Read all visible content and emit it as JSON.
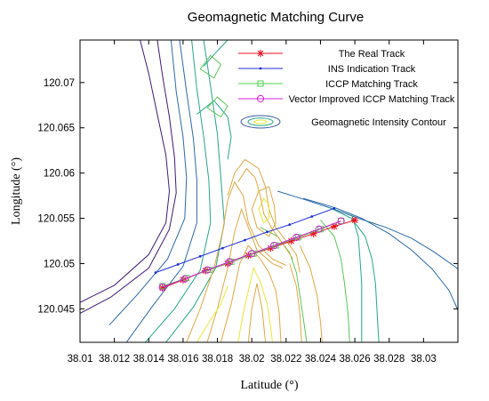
{
  "chart_data": {
    "type": "line",
    "title": "Geomagnetic Matching Curve",
    "xlabel": "Latitude (°)",
    "ylabel": "Longitude (°)",
    "xlim": [
      38.01,
      38.032
    ],
    "ylim": [
      120.0413,
      120.0747
    ],
    "x_ticks": [
      38.01,
      38.012,
      38.014,
      38.016,
      38.018,
      38.02,
      38.022,
      38.024,
      38.026,
      38.028,
      38.03
    ],
    "x_tick_labels": [
      "38.01",
      "38.012",
      "38.014",
      "38.016",
      "38.018",
      "38.02",
      "38.022",
      "38.024",
      "38.026",
      "38.028",
      "38.03"
    ],
    "y_ticks": [
      120.045,
      120.05,
      120.055,
      120.06,
      120.065,
      120.07
    ],
    "y_tick_labels": [
      "120.045",
      "120.05",
      "120.055",
      "120.06",
      "120.065",
      "120.07"
    ],
    "grid": false,
    "legend_position": "top-right",
    "series": [
      {
        "name": "The Real Track",
        "color": "#e8101e",
        "marker": "star",
        "points": [
          [
            38.0148,
            120.0473
          ],
          [
            38.016,
            120.0482
          ],
          [
            38.0173,
            120.0492
          ],
          [
            38.0186,
            120.05
          ],
          [
            38.0198,
            120.0509
          ],
          [
            38.0211,
            120.0517
          ],
          [
            38.0223,
            120.0525
          ],
          [
            38.0236,
            120.0533
          ],
          [
            38.0248,
            120.0541
          ],
          [
            38.026,
            120.0548
          ]
        ]
      },
      {
        "name": "INS Indication Track",
        "color": "#1f2fd6",
        "marker": "dot",
        "points": [
          [
            38.0144,
            120.049
          ],
          [
            38.0157,
            120.0499
          ],
          [
            38.017,
            120.0508
          ],
          [
            38.0183,
            120.0517
          ],
          [
            38.0196,
            120.0526
          ],
          [
            38.0209,
            120.0535
          ],
          [
            38.0222,
            120.0543
          ],
          [
            38.0235,
            120.0552
          ],
          [
            38.0248,
            120.0561
          ]
        ]
      },
      {
        "name": "ICCP Matching Track",
        "color": "#4fd34f",
        "marker": "square",
        "points": [
          [
            38.0148,
            120.0475
          ],
          [
            38.0162,
            120.0484
          ],
          [
            38.0175,
            120.0493
          ],
          [
            38.0188,
            120.0502
          ],
          [
            38.0201,
            120.0511
          ],
          [
            38.0214,
            120.052
          ],
          [
            38.0227,
            120.0529
          ],
          [
            38.024,
            120.0538
          ],
          [
            38.0252,
            120.0547
          ]
        ]
      },
      {
        "name": "Vector Improved ICCP Matching Track",
        "color": "#d520d5",
        "marker": "circle",
        "points": [
          [
            38.0148,
            120.0474
          ],
          [
            38.0161,
            120.0483
          ],
          [
            38.0174,
            120.0493
          ],
          [
            38.0187,
            120.0502
          ],
          [
            38.02,
            120.0511
          ],
          [
            38.0213,
            120.052
          ],
          [
            38.0226,
            120.0529
          ],
          [
            38.0239,
            120.0538
          ],
          [
            38.0252,
            120.0547
          ]
        ]
      }
    ],
    "contour_legend": {
      "name": "Geomagnetic Intensity Contour"
    },
    "contour_lines": [
      {
        "color": "#3f1a78",
        "points": [
          [
            38.01,
            120.0457
          ],
          [
            38.012,
            120.0476
          ],
          [
            38.014,
            120.051
          ],
          [
            38.015,
            120.0545
          ],
          [
            38.0152,
            120.058
          ],
          [
            38.015,
            120.062
          ],
          [
            38.0145,
            120.0665
          ],
          [
            38.014,
            120.071
          ],
          [
            38.0135,
            120.0747
          ]
        ]
      },
      {
        "color": "#3f1a78",
        "points": [
          [
            38.01,
            120.0445
          ],
          [
            38.0118,
            120.0463
          ],
          [
            38.014,
            120.0495
          ],
          [
            38.0152,
            120.0538
          ],
          [
            38.0156,
            120.0578
          ],
          [
            38.0155,
            120.0617
          ],
          [
            38.0152,
            120.0662
          ],
          [
            38.0148,
            120.0708
          ],
          [
            38.0145,
            120.0747
          ]
        ]
      },
      {
        "color": "#2c6aa8",
        "points": [
          [
            38.0117,
            120.0432
          ],
          [
            38.0133,
            120.0465
          ],
          [
            38.0151,
            120.0505
          ],
          [
            38.0161,
            120.055
          ],
          [
            38.0162,
            120.0595
          ],
          [
            38.016,
            120.064
          ],
          [
            38.0156,
            120.069
          ],
          [
            38.0153,
            120.0747
          ]
        ]
      },
      {
        "color": "#2c6aa8",
        "points": [
          [
            38.0127,
            120.0413
          ],
          [
            38.0143,
            120.0455
          ],
          [
            38.016,
            120.0497
          ],
          [
            38.0168,
            120.0545
          ],
          [
            38.0168,
            120.0592
          ],
          [
            38.0166,
            120.0638
          ],
          [
            38.0162,
            120.069
          ],
          [
            38.0158,
            120.0747
          ]
        ]
      },
      {
        "color": "#27a68a",
        "points": [
          [
            38.0138,
            120.0413
          ],
          [
            38.0155,
            120.045
          ],
          [
            38.017,
            120.0493
          ],
          [
            38.0176,
            120.0545
          ],
          [
            38.0175,
            120.0592
          ],
          [
            38.0172,
            120.064
          ],
          [
            38.0168,
            120.0693
          ],
          [
            38.0165,
            120.0747
          ]
        ]
      },
      {
        "color": "#27a68a",
        "points": [
          [
            38.015,
            120.0413
          ],
          [
            38.0166,
            120.0452
          ],
          [
            38.0179,
            120.0495
          ],
          [
            38.0184,
            120.0545
          ],
          [
            38.0182,
            120.0595
          ],
          [
            38.018,
            120.0643
          ],
          [
            38.0176,
            120.0696
          ],
          [
            38.0172,
            120.0747
          ]
        ]
      },
      {
        "color": "#27a68a",
        "points": [
          [
            38.0172,
            120.0718
          ],
          [
            38.018,
            120.0735
          ],
          [
            38.0186,
            120.0747
          ]
        ]
      },
      {
        "color": "#27a68a",
        "points": [
          [
            38.0168,
            120.0665
          ],
          [
            38.0178,
            120.068
          ],
          [
            38.0186,
            120.0662
          ],
          [
            38.0188,
            120.064
          ],
          [
            38.0186,
            120.0615
          ]
        ]
      },
      {
        "color": "#5ac85a",
        "points": [
          [
            38.017,
            120.0715
          ],
          [
            38.0176,
            120.073
          ],
          [
            38.0182,
            120.072
          ],
          [
            38.0178,
            120.0705
          ],
          [
            38.017,
            120.0715
          ]
        ]
      },
      {
        "color": "#5ac85a",
        "points": [
          [
            38.0174,
            120.0672
          ],
          [
            38.018,
            120.0684
          ],
          [
            38.0186,
            120.0674
          ],
          [
            38.0182,
            120.0662
          ],
          [
            38.0174,
            120.0672
          ]
        ]
      },
      {
        "color": "#2c6aa8",
        "points": [
          [
            38.0215,
            120.058
          ],
          [
            38.0232,
            120.057
          ],
          [
            38.0248,
            120.056
          ],
          [
            38.0262,
            120.055
          ],
          [
            38.0278,
            120.054
          ],
          [
            38.0293,
            120.0528
          ],
          [
            38.0306,
            120.0513
          ],
          [
            38.0318,
            120.0497
          ],
          [
            38.032,
            120.0494
          ]
        ]
      },
      {
        "color": "#2c6aa8",
        "points": [
          [
            38.023,
            120.0572
          ],
          [
            38.0248,
            120.0562
          ],
          [
            38.0264,
            120.055
          ],
          [
            38.028,
            120.0533
          ],
          [
            38.0293,
            120.0515
          ],
          [
            38.0305,
            120.0494
          ],
          [
            38.0315,
            120.047
          ],
          [
            38.0322,
            120.044
          ],
          [
            38.0325,
            120.0413
          ]
        ]
      },
      {
        "color": "#27a68a",
        "points": [
          [
            38.0245,
            120.0562
          ],
          [
            38.0258,
            120.055
          ],
          [
            38.0266,
            120.053
          ],
          [
            38.027,
            120.0505
          ],
          [
            38.0272,
            120.0478
          ],
          [
            38.0273,
            120.0445
          ],
          [
            38.0274,
            120.0413
          ]
        ]
      },
      {
        "color": "#27a68a",
        "points": [
          [
            38.0258,
            120.0555
          ],
          [
            38.0262,
            120.053
          ],
          [
            38.0263,
            120.0505
          ],
          [
            38.0264,
            120.0478
          ],
          [
            38.0264,
            120.0445
          ],
          [
            38.0264,
            120.0413
          ]
        ]
      },
      {
        "color": "#5ac85a",
        "points": [
          [
            38.0205,
            120.054
          ],
          [
            38.0215,
            120.053
          ],
          [
            38.0222,
            120.0512
          ],
          [
            38.0226,
            120.049
          ],
          [
            38.0228,
            120.0465
          ],
          [
            38.023,
            120.044
          ],
          [
            38.0232,
            120.0413
          ]
        ]
      },
      {
        "color": "#5ac85a",
        "points": [
          [
            38.024,
            120.0548
          ],
          [
            38.0248,
            120.053
          ],
          [
            38.0252,
            120.0505
          ],
          [
            38.0254,
            120.0478
          ],
          [
            38.0256,
            120.0445
          ],
          [
            38.0257,
            120.0413
          ]
        ]
      },
      {
        "color": "#e0a844",
        "points": [
          [
            38.0162,
            120.0413
          ],
          [
            38.017,
            120.045
          ],
          [
            38.0178,
            120.0495
          ],
          [
            38.0183,
            120.0535
          ],
          [
            38.0186,
            120.057
          ],
          [
            38.019,
            120.059
          ],
          [
            38.0195,
            120.0575
          ],
          [
            38.0198,
            120.0545
          ],
          [
            38.0204,
            120.052
          ],
          [
            38.0212,
            120.0505
          ],
          [
            38.022,
            120.0498
          ]
        ]
      },
      {
        "color": "#e0a844",
        "points": [
          [
            38.0174,
            120.0413
          ],
          [
            38.018,
            120.045
          ],
          [
            38.0186,
            120.0495
          ],
          [
            38.019,
            120.0535
          ],
          [
            38.0194,
            120.056
          ],
          [
            38.0198,
            120.054
          ],
          [
            38.0203,
            120.0515
          ],
          [
            38.0212,
            120.05
          ],
          [
            38.0218,
            120.0495
          ]
        ]
      },
      {
        "color": "#e0a844",
        "points": [
          [
            38.0182,
            120.0413
          ],
          [
            38.0188,
            120.0455
          ],
          [
            38.0193,
            120.05
          ],
          [
            38.0198,
            120.052
          ],
          [
            38.0205,
            120.0505
          ],
          [
            38.021,
            120.049
          ],
          [
            38.0214,
            120.047
          ],
          [
            38.0216,
            120.0445
          ],
          [
            38.0217,
            120.0413
          ]
        ]
      },
      {
        "color": "#e0a844",
        "points": [
          [
            38.0198,
            120.0413
          ],
          [
            38.02,
            120.045
          ],
          [
            38.0203,
            120.0478
          ],
          [
            38.0206,
            120.045
          ],
          [
            38.0208,
            120.0413
          ]
        ]
      },
      {
        "color": "#e0a844",
        "points": [
          [
            38.0186,
            120.0575
          ],
          [
            38.019,
            120.06
          ],
          [
            38.0196,
            120.0615
          ],
          [
            38.0204,
            120.0605
          ],
          [
            38.0208,
            120.0585
          ],
          [
            38.021,
            120.056
          ],
          [
            38.0214,
            120.054
          ],
          [
            38.022,
            120.0525
          ],
          [
            38.0226,
            120.051
          ],
          [
            38.0228,
            120.049
          ]
        ]
      },
      {
        "color": "#e0a844",
        "points": [
          [
            38.0192,
            120.059
          ],
          [
            38.0197,
            120.0605
          ],
          [
            38.0202,
            120.0595
          ],
          [
            38.0205,
            120.0575
          ],
          [
            38.0207,
            120.0555
          ],
          [
            38.0212,
            120.0538
          ],
          [
            38.0218,
            120.0522
          ],
          [
            38.0224,
            120.0505
          ]
        ]
      },
      {
        "color": "#e0a844",
        "points": [
          [
            38.02,
            120.056
          ],
          [
            38.0204,
            120.058
          ],
          [
            38.021,
            120.0585
          ],
          [
            38.0213,
            120.0565
          ],
          [
            38.0214,
            120.0545
          ],
          [
            38.021,
            120.053
          ],
          [
            38.0203,
            120.054
          ],
          [
            38.02,
            120.056
          ]
        ]
      },
      {
        "color": "#e0a844",
        "points": [
          [
            38.0222,
            120.05
          ],
          [
            38.0226,
            120.0475
          ],
          [
            38.0228,
            120.0445
          ],
          [
            38.0229,
            120.0413
          ]
        ]
      },
      {
        "color": "#e0a844",
        "points": [
          [
            38.0228,
            120.052
          ],
          [
            38.0234,
            120.0495
          ],
          [
            38.0238,
            120.0465
          ],
          [
            38.024,
            120.0435
          ],
          [
            38.0241,
            120.0413
          ]
        ]
      },
      {
        "color": "#e8e838",
        "points": [
          [
            38.0204,
            120.056
          ],
          [
            38.0207,
            120.0572
          ],
          [
            38.021,
            120.0565
          ],
          [
            38.021,
            120.055
          ],
          [
            38.0207,
            120.0545
          ],
          [
            38.0204,
            120.056
          ]
        ]
      },
      {
        "color": "#e8e838",
        "points": [
          [
            38.0192,
            120.0413
          ],
          [
            38.0195,
            120.0445
          ],
          [
            38.0198,
            120.047
          ],
          [
            38.0201,
            120.0495
          ],
          [
            38.0205,
            120.048
          ],
          [
            38.0209,
            120.0455
          ],
          [
            38.0211,
            120.043
          ],
          [
            38.0212,
            120.0413
          ]
        ]
      },
      {
        "color": "#e8e838",
        "points": [
          [
            38.0168,
            120.0413
          ],
          [
            38.0175,
            120.0435
          ],
          [
            38.0182,
            120.0455
          ],
          [
            38.0186,
            120.0475
          ]
        ]
      }
    ]
  }
}
